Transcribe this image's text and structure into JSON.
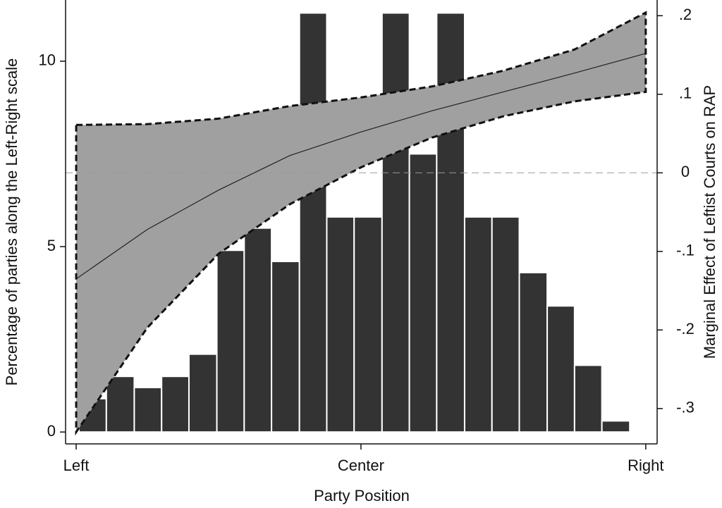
{
  "chart_data": {
    "type": "histogram",
    "xlabel": "Party Position",
    "ylabel": "Percentage of parties along the Left-Right scale",
    "y2label": "Marginal Effect of Leftist Courts on RAP",
    "bins": [
      0.05,
      0.53,
      1.02,
      1.5,
      1.98,
      2.47,
      2.95,
      3.43,
      3.92,
      4.4,
      4.88,
      5.37,
      5.85,
      6.33,
      6.82,
      7.3,
      7.78,
      8.27,
      8.75,
      9.23,
      9.72
    ],
    "values": [
      0.9,
      1.5,
      1.2,
      1.5,
      2.1,
      4.9,
      5.5,
      4.6,
      11.3,
      5.8,
      5.8,
      11.3,
      7.5,
      11.3,
      5.8,
      5.8,
      4.3,
      3.4,
      1.8,
      0.3
    ],
    "color": "#333333",
    "effect": {
      "axis": "y2",
      "x": [
        0,
        1.25,
        2.5,
        3.75,
        5,
        6.25,
        7.5,
        8.75,
        10
      ],
      "values": [
        -0.135,
        -0.072,
        -0.022,
        0.022,
        0.052,
        0.079,
        0.103,
        0.127,
        0.152
      ],
      "lower": [
        -0.33,
        -0.197,
        -0.103,
        -0.04,
        0.007,
        0.045,
        0.072,
        0.091,
        0.103
      ],
      "upper": [
        0.061,
        0.062,
        0.069,
        0.085,
        0.096,
        0.11,
        0.13,
        0.157,
        0.204
      ],
      "band_color": "#a0a0a0",
      "line_color": "#222222"
    },
    "refline_y2": 0,
    "xlim": [
      -0.186,
      10.2
    ],
    "xticks": [
      {
        "value": 0,
        "label": "Left"
      },
      {
        "value": 5,
        "label": "Center"
      },
      {
        "value": 10,
        "label": "Right"
      }
    ],
    "ylim": [
      -0.32,
      11.65
    ],
    "yticks": [
      0,
      5,
      10
    ],
    "y2lim": [
      -0.345,
      0.22
    ],
    "y2ticks": [
      {
        "value": -0.3,
        "label": "-.3"
      },
      {
        "value": -0.2,
        "label": "-.2"
      },
      {
        "value": -0.1,
        "label": "-.1"
      },
      0,
      {
        "value": 0.1,
        "label": ".1"
      },
      {
        "value": 0.2,
        "label": ".2"
      }
    ]
  }
}
